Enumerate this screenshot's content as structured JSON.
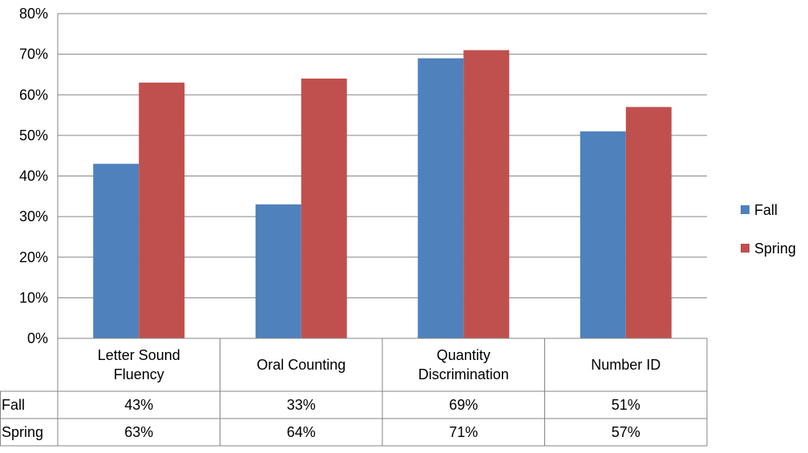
{
  "chart_data": {
    "type": "bar",
    "categories": [
      [
        "Letter Sound",
        "Fluency"
      ],
      [
        "Oral Counting"
      ],
      [
        "Quantity",
        "Discrimination"
      ],
      [
        "Number ID"
      ]
    ],
    "series": [
      {
        "name": "Fall",
        "values": [
          43,
          33,
          69,
          51
        ],
        "labels": [
          "43%",
          "33%",
          "69%",
          "51%"
        ],
        "color": "#4F81BD"
      },
      {
        "name": "Spring",
        "values": [
          63,
          64,
          71,
          57
        ],
        "labels": [
          "63%",
          "64%",
          "71%",
          "57%"
        ],
        "color": "#C0504D"
      }
    ],
    "ylim": [
      0,
      80
    ],
    "yticks": [
      0,
      10,
      20,
      30,
      40,
      50,
      60,
      70,
      80
    ],
    "ytick_labels": [
      "0%",
      "10%",
      "20%",
      "30%",
      "40%",
      "50%",
      "60%",
      "70%",
      "80%"
    ],
    "grid": true,
    "legend_placement": "right",
    "data_table": true
  }
}
